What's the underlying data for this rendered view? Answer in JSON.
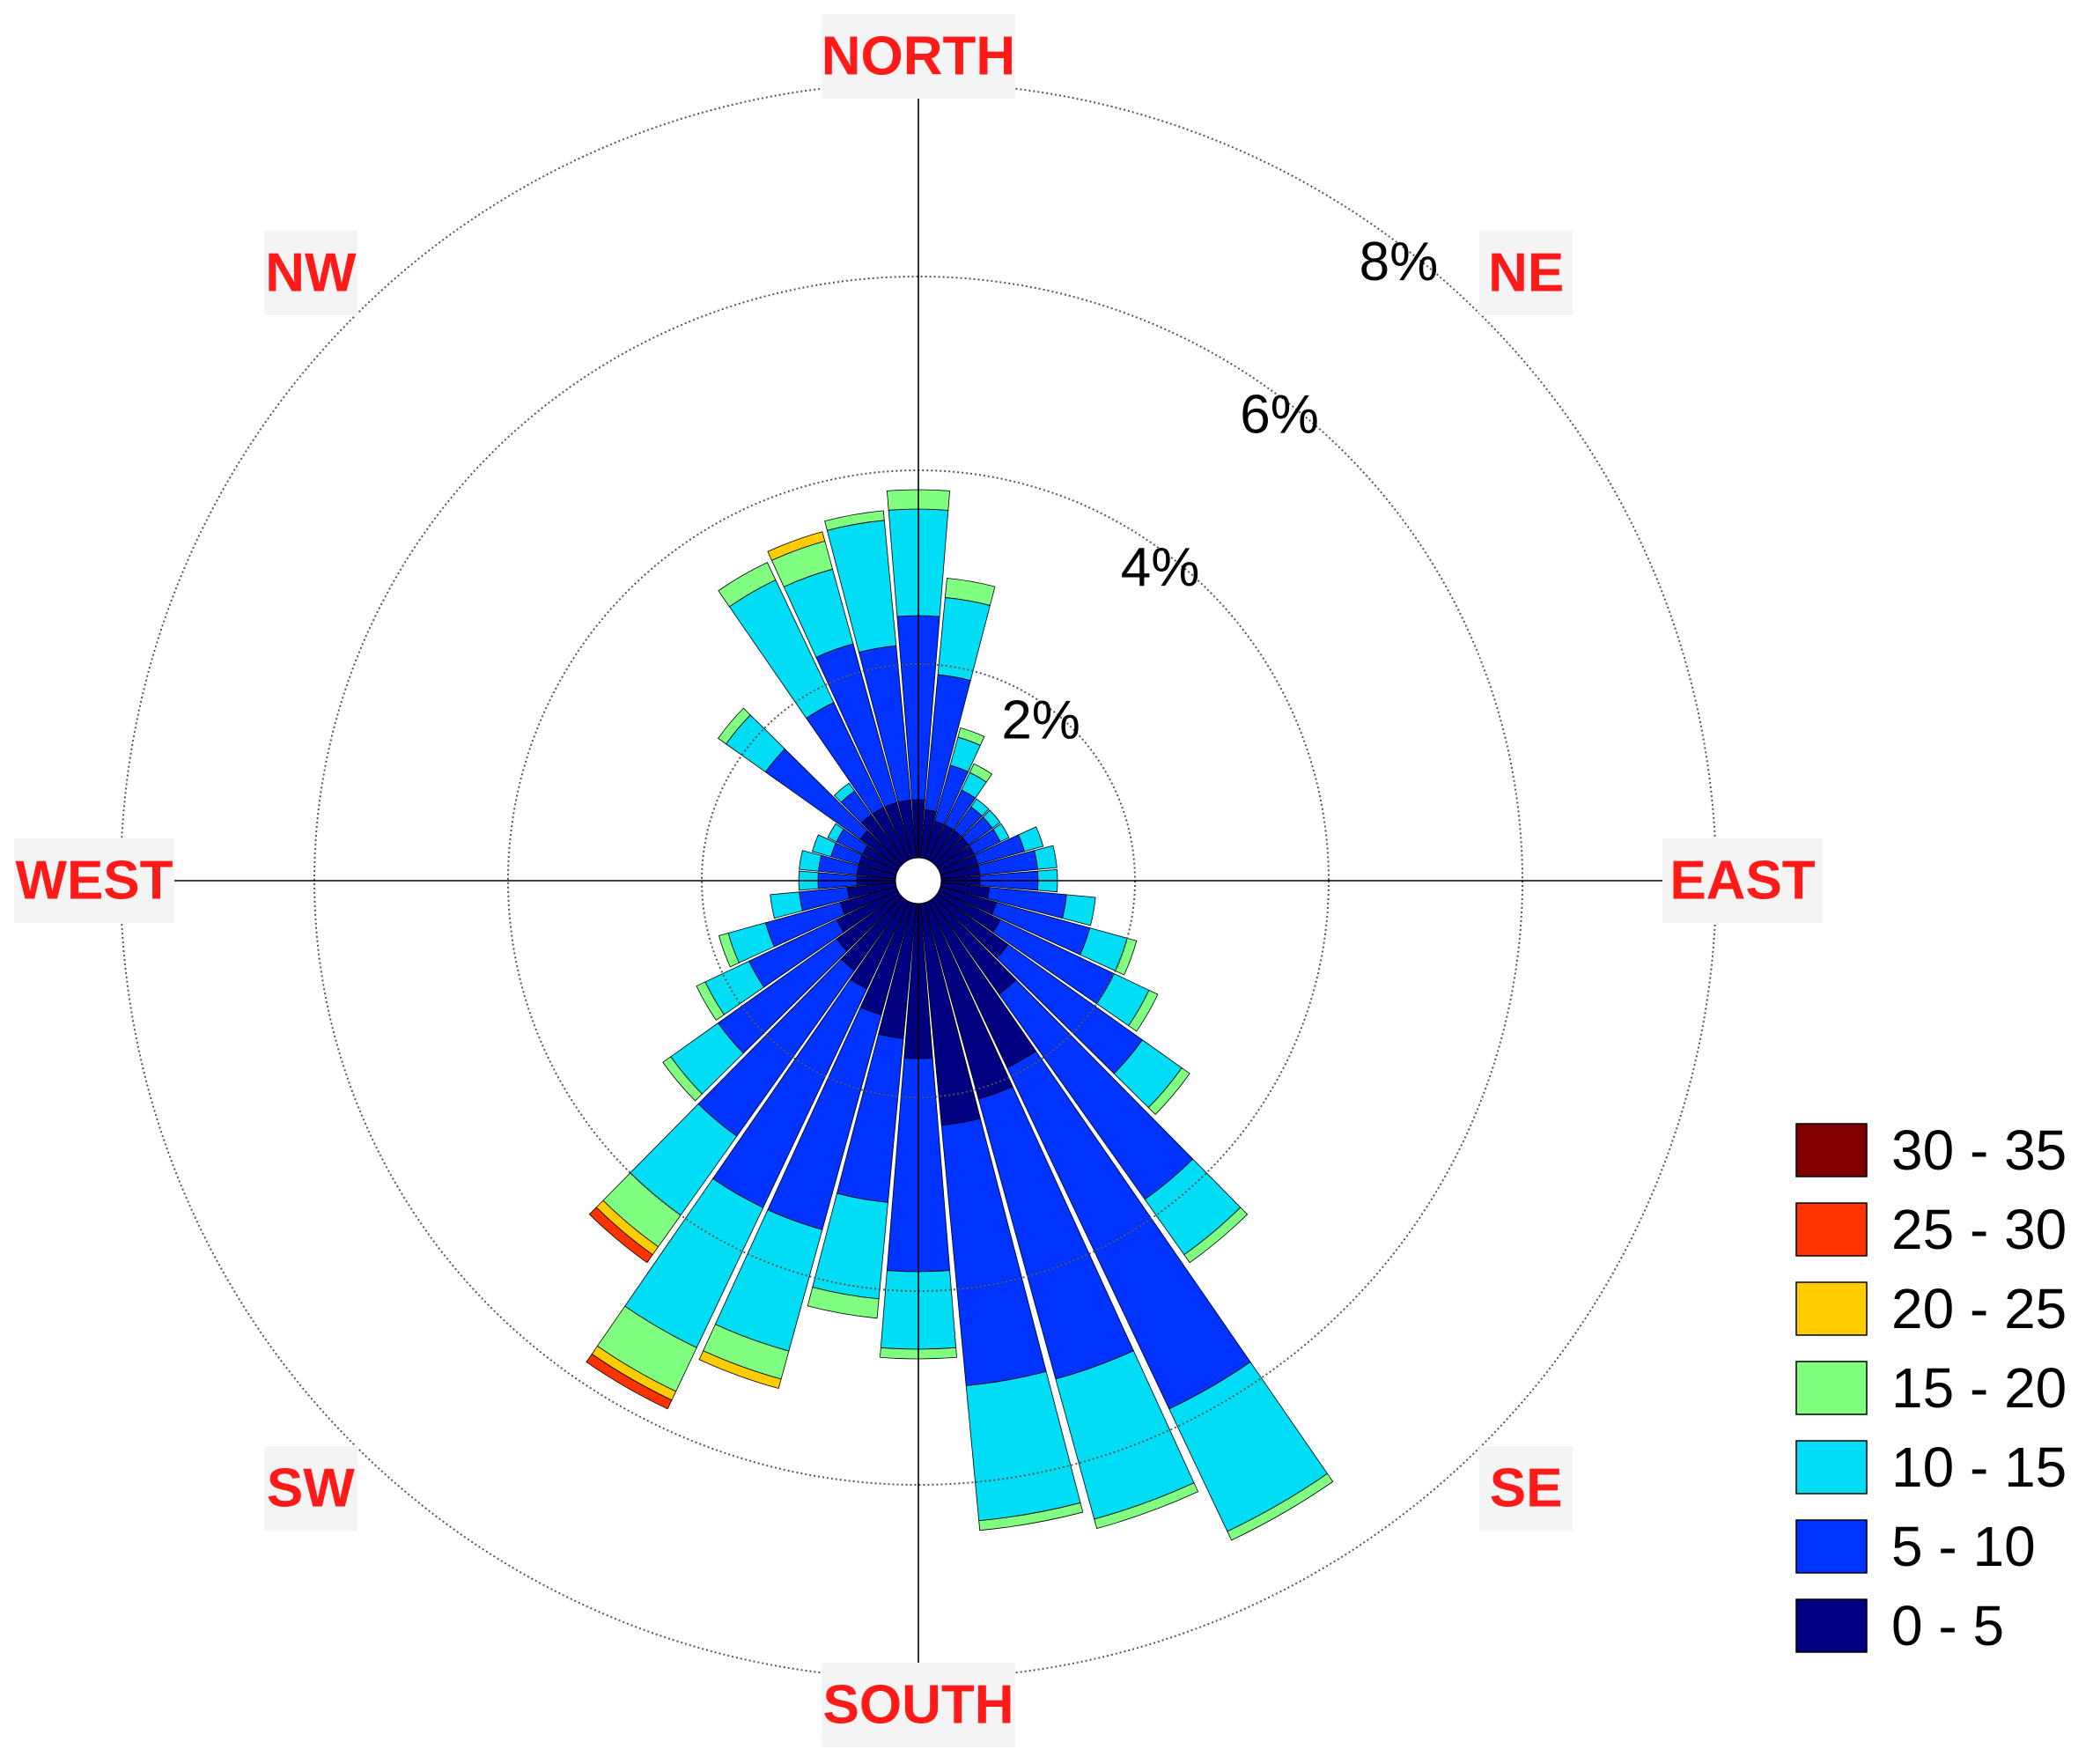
{
  "chart_data": {
    "type": "windrose",
    "units": "%",
    "sector_count": 36,
    "ring_values": [
      2,
      4,
      6,
      8
    ],
    "ring_labels": [
      "2%",
      "4%",
      "6%",
      "8%"
    ],
    "directions": [
      {
        "label": "NORTH",
        "angle": 0
      },
      {
        "label": "NE",
        "angle": 45
      },
      {
        "label": "EAST",
        "angle": 90
      },
      {
        "label": "SE",
        "angle": 135
      },
      {
        "label": "SOUTH",
        "angle": 180
      },
      {
        "label": "SW",
        "angle": 225
      },
      {
        "label": "WEST",
        "angle": 270
      },
      {
        "label": "NW",
        "angle": 315
      }
    ],
    "bins": [
      {
        "label": "0 - 5",
        "color": "#000080"
      },
      {
        "label": "5 - 10",
        "color": "#0033ff"
      },
      {
        "label": "10 - 15",
        "color": "#00ddf5"
      },
      {
        "label": "15 - 20",
        "color": "#80ff80"
      },
      {
        "label": "20 - 25",
        "color": "#ffcc00"
      },
      {
        "label": "25 - 30",
        "color": "#ff3300"
      },
      {
        "label": "30 - 35",
        "color": "#800000"
      }
    ],
    "legend_order": [
      "30 - 35",
      "25 - 30",
      "20 - 25",
      "15 - 20",
      "10 - 15",
      "5 - 10",
      "0 - 5"
    ],
    "sectors": [
      {
        "dir": 0,
        "values": [
          0.6,
          1.9,
          1.1,
          0.2,
          0.0,
          0.0,
          0.0
        ]
      },
      {
        "dir": 10,
        "values": [
          0.5,
          1.4,
          0.8,
          0.2,
          0.0,
          0.0,
          0.0
        ]
      },
      {
        "dir": 20,
        "values": [
          0.4,
          0.6,
          0.3,
          0.1,
          0.0,
          0.0,
          0.0
        ]
      },
      {
        "dir": 30,
        "values": [
          0.4,
          0.4,
          0.2,
          0.1,
          0.0,
          0.0,
          0.0
        ]
      },
      {
        "dir": 40,
        "values": [
          0.4,
          0.3,
          0.1,
          0.0,
          0.0,
          0.0,
          0.0
        ]
      },
      {
        "dir": 50,
        "values": [
          0.4,
          0.3,
          0.1,
          0.0,
          0.0,
          0.0,
          0.0
        ]
      },
      {
        "dir": 60,
        "values": [
          0.4,
          0.3,
          0.1,
          0.0,
          0.0,
          0.0,
          0.0
        ]
      },
      {
        "dir": 70,
        "values": [
          0.4,
          0.5,
          0.2,
          0.0,
          0.0,
          0.0,
          0.0
        ]
      },
      {
        "dir": 80,
        "values": [
          0.4,
          0.6,
          0.2,
          0.0,
          0.0,
          0.0,
          0.0
        ]
      },
      {
        "dir": 90,
        "values": [
          0.4,
          0.6,
          0.2,
          0.0,
          0.0,
          0.0,
          0.0
        ]
      },
      {
        "dir": 100,
        "values": [
          0.5,
          0.8,
          0.3,
          0.0,
          0.0,
          0.0,
          0.0
        ]
      },
      {
        "dir": 110,
        "values": [
          0.6,
          1.0,
          0.4,
          0.1,
          0.0,
          0.0,
          0.0
        ]
      },
      {
        "dir": 120,
        "values": [
          0.7,
          1.3,
          0.4,
          0.1,
          0.0,
          0.0,
          0.0
        ]
      },
      {
        "dir": 130,
        "values": [
          0.9,
          1.7,
          0.5,
          0.1,
          0.0,
          0.0,
          0.0
        ]
      },
      {
        "dir": 140,
        "values": [
          1.2,
          2.6,
          0.7,
          0.1,
          0.0,
          0.0,
          0.0
        ]
      },
      {
        "dir": 150,
        "values": [
          1.9,
          3.9,
          1.4,
          0.1,
          0.0,
          0.0,
          0.0
        ]
      },
      {
        "dir": 160,
        "values": [
          2.1,
          3.0,
          1.5,
          0.1,
          0.0,
          0.0,
          0.0
        ]
      },
      {
        "dir": 170,
        "values": [
          2.3,
          2.7,
          1.4,
          0.1,
          0.0,
          0.0,
          0.0
        ]
      },
      {
        "dir": 180,
        "values": [
          1.6,
          2.2,
          0.8,
          0.1,
          0.0,
          0.0,
          0.0
        ]
      },
      {
        "dir": 190,
        "values": [
          1.4,
          1.7,
          1.0,
          0.2,
          0.0,
          0.0,
          0.0
        ]
      },
      {
        "dir": 200,
        "values": [
          1.2,
          2.3,
          1.3,
          0.3,
          0.1,
          0.0,
          0.0
        ]
      },
      {
        "dir": 210,
        "values": [
          1.0,
          2.5,
          1.6,
          0.5,
          0.1,
          0.1,
          0.0
        ]
      },
      {
        "dir": 220,
        "values": [
          0.9,
          2.1,
          1.0,
          0.4,
          0.1,
          0.1,
          0.0
        ]
      },
      {
        "dir": 230,
        "values": [
          0.8,
          1.5,
          0.6,
          0.1,
          0.0,
          0.0,
          0.0
        ]
      },
      {
        "dir": 240,
        "values": [
          0.7,
          1.0,
          0.5,
          0.1,
          0.0,
          0.0,
          0.0
        ]
      },
      {
        "dir": 250,
        "values": [
          0.6,
          0.8,
          0.4,
          0.1,
          0.0,
          0.0,
          0.0
        ]
      },
      {
        "dir": 260,
        "values": [
          0.5,
          0.5,
          0.3,
          0.0,
          0.0,
          0.0,
          0.0
        ]
      },
      {
        "dir": 270,
        "values": [
          0.4,
          0.4,
          0.2,
          0.0,
          0.0,
          0.0,
          0.0
        ]
      },
      {
        "dir": 280,
        "values": [
          0.4,
          0.4,
          0.2,
          0.0,
          0.0,
          0.0,
          0.0
        ]
      },
      {
        "dir": 290,
        "values": [
          0.4,
          0.3,
          0.2,
          0.0,
          0.0,
          0.0,
          0.0
        ]
      },
      {
        "dir": 300,
        "values": [
          0.4,
          0.3,
          0.1,
          0.0,
          0.0,
          0.0,
          0.0
        ]
      },
      {
        "dir": 310,
        "values": [
          0.5,
          1.2,
          0.5,
          0.1,
          0.0,
          0.0,
          0.0
        ]
      },
      {
        "dir": 320,
        "values": [
          0.6,
          0.3,
          0.1,
          0.0,
          0.0,
          0.0,
          0.0
        ]
      },
      {
        "dir": 330,
        "values": [
          0.6,
          1.2,
          1.4,
          0.2,
          0.0,
          0.0,
          0.0
        ]
      },
      {
        "dir": 340,
        "values": [
          0.6,
          1.7,
          0.8,
          0.3,
          0.1,
          0.0,
          0.0
        ]
      },
      {
        "dir": 350,
        "values": [
          0.6,
          1.6,
          1.3,
          0.1,
          0.0,
          0.0,
          0.0
        ]
      }
    ]
  }
}
